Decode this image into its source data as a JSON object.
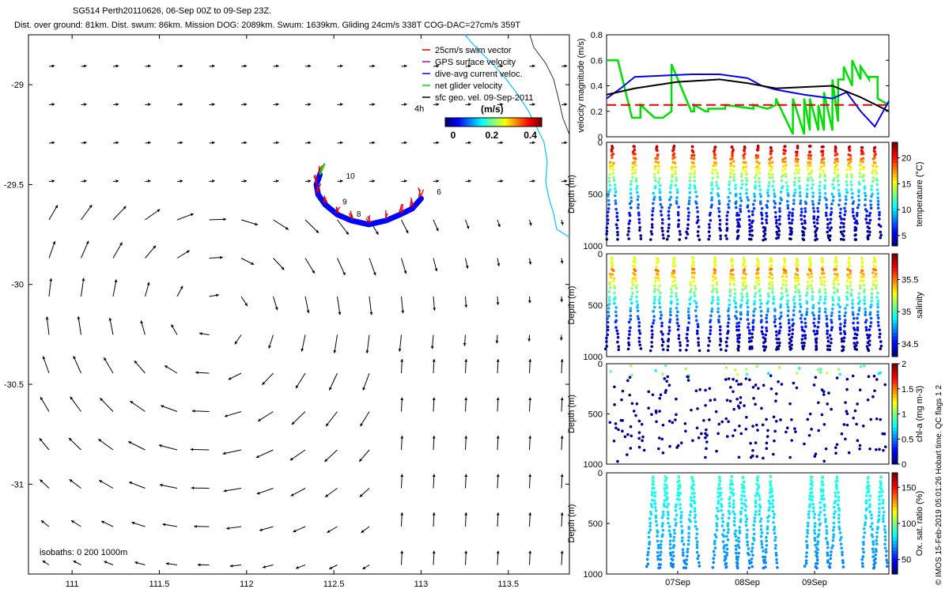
{
  "header": {
    "title": "SG514 Perth20110626, 06-Sep 00Z to 09-Sep 23Z.",
    "subtitle": "Dist. over ground: 81km. Dist. swum: 86km. Mission DOG: 2089km. Swum: 1639km. Gliding 24cm/s 338T COG-DAC=27cm/s 359T"
  },
  "copyright": "© IMOS 15-Feb-2019 05:01:26 Hobart time. QC flags 1  2",
  "colors": {
    "swim": "#e00000",
    "gps": "#c000c0",
    "dac": "#0000ff",
    "net": "#00e000",
    "geo": "#000000",
    "coast": "#00c8ff",
    "black_line": "#000000"
  },
  "chart_data": [
    {
      "id": "map",
      "type": "quiver-map",
      "xlim": [
        110.75,
        113.85
      ],
      "ylim": [
        -31.45,
        -28.75
      ],
      "xticks": [
        111,
        111.5,
        112,
        112.5,
        113,
        113.5
      ],
      "xticklabels": [
        "111",
        "111.5",
        "112",
        "112.5",
        "113",
        "113.5"
      ],
      "yticks": [
        -29,
        -29.5,
        -30,
        -30.5,
        -31
      ],
      "yticklabels": [
        "-29",
        "-29.5",
        "-30",
        "-30.5",
        "-31"
      ],
      "legend": [
        {
          "label": "25cm/s swim vector",
          "color": "#e00000"
        },
        {
          "label": "GPS surface velocity",
          "color": "#c000c0"
        },
        {
          "label": "dive-avg current veloc.",
          "color": "#0000ff"
        },
        {
          "label": "net glider velocity",
          "color": "#00e000"
        },
        {
          "label": "sfc geo. vel. 09-Sep-2011",
          "color": "#000000"
        }
      ],
      "colorbar": {
        "label": "(m/s)",
        "ticks": [
          "0",
          "0.2",
          "0.4"
        ],
        "range": [
          0,
          0.5
        ]
      },
      "scale_label": "4h",
      "isobaths_label": "isobaths: 0   200  1000m",
      "track_labels": [
        {
          "text": "10",
          "lon": 112.57,
          "lat": -29.47
        },
        {
          "text": "9",
          "lon": 112.55,
          "lat": -29.6
        },
        {
          "text": "8",
          "lon": 112.63,
          "lat": -29.66
        },
        {
          "text": "6",
          "lon": 113.09,
          "lat": -29.55
        }
      ],
      "track": [
        [
          112.42,
          -29.45
        ],
        [
          112.4,
          -29.5
        ],
        [
          112.41,
          -29.55
        ],
        [
          112.45,
          -29.6
        ],
        [
          112.52,
          -29.65
        ],
        [
          112.6,
          -29.68
        ],
        [
          112.7,
          -29.7
        ],
        [
          112.8,
          -29.68
        ],
        [
          112.88,
          -29.65
        ],
        [
          112.95,
          -29.62
        ],
        [
          113.0,
          -29.57
        ]
      ]
    },
    {
      "id": "velocity",
      "type": "line",
      "ylabel": "velocity magnitude (m/s)",
      "ylim": [
        0,
        0.8
      ],
      "yticks": [
        0,
        0.2,
        0.4,
        0.6,
        0.8
      ],
      "yticklabels": [
        "0",
        "0.2",
        "0.4",
        "0.6",
        "0.8"
      ],
      "xlim": [
        0,
        1
      ],
      "series": [
        {
          "name": "net glider velocity",
          "color": "#00e000",
          "x": [
            0,
            0.04,
            0.04,
            0.09,
            0.12,
            0.12,
            0.17,
            0.2,
            0.23,
            0.23,
            0.3,
            0.31,
            0.31,
            0.35,
            0.36,
            0.36,
            0.42,
            0.42,
            0.52,
            0.52,
            0.57,
            0.6,
            0.6,
            0.66,
            0.66,
            0.7,
            0.7,
            0.72,
            0.72,
            0.75,
            0.75,
            0.77,
            0.77,
            0.8,
            0.8,
            0.82,
            0.82,
            0.84,
            0.84,
            0.87,
            0.87,
            0.9,
            0.9,
            0.93,
            0.93,
            0.96,
            0.96,
            1.0
          ],
          "values": [
            0.6,
            0.6,
            0.6,
            0.15,
            0.15,
            0.25,
            0.15,
            0.15,
            0.2,
            0.57,
            0.2,
            0.2,
            0.25,
            0.2,
            0.2,
            0.22,
            0.22,
            0.25,
            0.22,
            0.25,
            0.22,
            0.25,
            0.3,
            0.02,
            0.3,
            0.02,
            0.3,
            0.05,
            0.3,
            0.05,
            0.25,
            0.05,
            0.35,
            0.05,
            0.45,
            0.12,
            0.45,
            0.45,
            0.55,
            0.4,
            0.6,
            0.45,
            0.55,
            0.45,
            0.47,
            0.47,
            0.3,
            0.25
          ]
        },
        {
          "name": "dive-avg current veloc.",
          "color": "#0000ff",
          "x": [
            0,
            0.05,
            0.1,
            0.2,
            0.3,
            0.4,
            0.5,
            0.55,
            0.6,
            0.7,
            0.8,
            0.85,
            0.9,
            0.95,
            1.0
          ],
          "values": [
            0.3,
            0.38,
            0.47,
            0.48,
            0.49,
            0.49,
            0.46,
            0.4,
            0.37,
            0.33,
            0.3,
            0.35,
            0.2,
            0.08,
            0.28
          ]
        },
        {
          "name": "swim",
          "color": "#e00000",
          "x": [
            0,
            1
          ],
          "values": [
            0.25,
            0.25
          ]
        },
        {
          "name": "black",
          "color": "#000000",
          "x": [
            0,
            0.1,
            0.25,
            0.4,
            0.5,
            0.6,
            0.8,
            0.9,
            1.0
          ],
          "values": [
            0.33,
            0.38,
            0.43,
            0.45,
            0.42,
            0.38,
            0.4,
            0.31,
            0.2
          ]
        }
      ]
    },
    {
      "id": "temperature",
      "type": "scatter-depth",
      "ylabel": "Depth (m)",
      "cblabel": "temperature (°C)",
      "cbticks": [
        "5",
        "10",
        "15",
        "20"
      ],
      "cbrange": [
        3,
        23
      ],
      "yticks": [
        0,
        500,
        1000
      ],
      "yticklabels": [
        "0",
        "500",
        "1000"
      ],
      "ylim": [
        0,
        1000
      ]
    },
    {
      "id": "salinity",
      "type": "scatter-depth",
      "ylabel": "Depth (m)",
      "cblabel": "salinity",
      "cbticks": [
        "34.5",
        "35",
        "35.5"
      ],
      "cbrange": [
        34.3,
        35.9
      ],
      "yticks": [
        0,
        500,
        1000
      ],
      "yticklabels": [
        "0",
        "500",
        "1000"
      ],
      "ylim": [
        0,
        1000
      ]
    },
    {
      "id": "chla",
      "type": "scatter-depth",
      "ylabel": "Depth (m)",
      "cblabel": "chl-a (mg m-3)",
      "cbticks": [
        "0",
        "0.5",
        "1",
        "1.5",
        "2"
      ],
      "cbrange": [
        0,
        2
      ],
      "yticks": [
        0,
        500,
        1000
      ],
      "yticklabels": [
        "0",
        "500",
        "1000"
      ],
      "ylim": [
        0,
        1000
      ]
    },
    {
      "id": "oxygen",
      "type": "scatter-depth",
      "ylabel": "Depth (m)",
      "cblabel": "Ox. sat. ratio (%)",
      "cbticks": [
        "50",
        "100",
        "150"
      ],
      "cbrange": [
        30,
        170
      ],
      "yticks": [
        0,
        500,
        1000
      ],
      "yticklabels": [
        "0",
        "500",
        "1000"
      ],
      "ylim": [
        0,
        1000
      ],
      "xticklabels": [
        "07Sep",
        "08Sep",
        "09Sep"
      ]
    }
  ]
}
